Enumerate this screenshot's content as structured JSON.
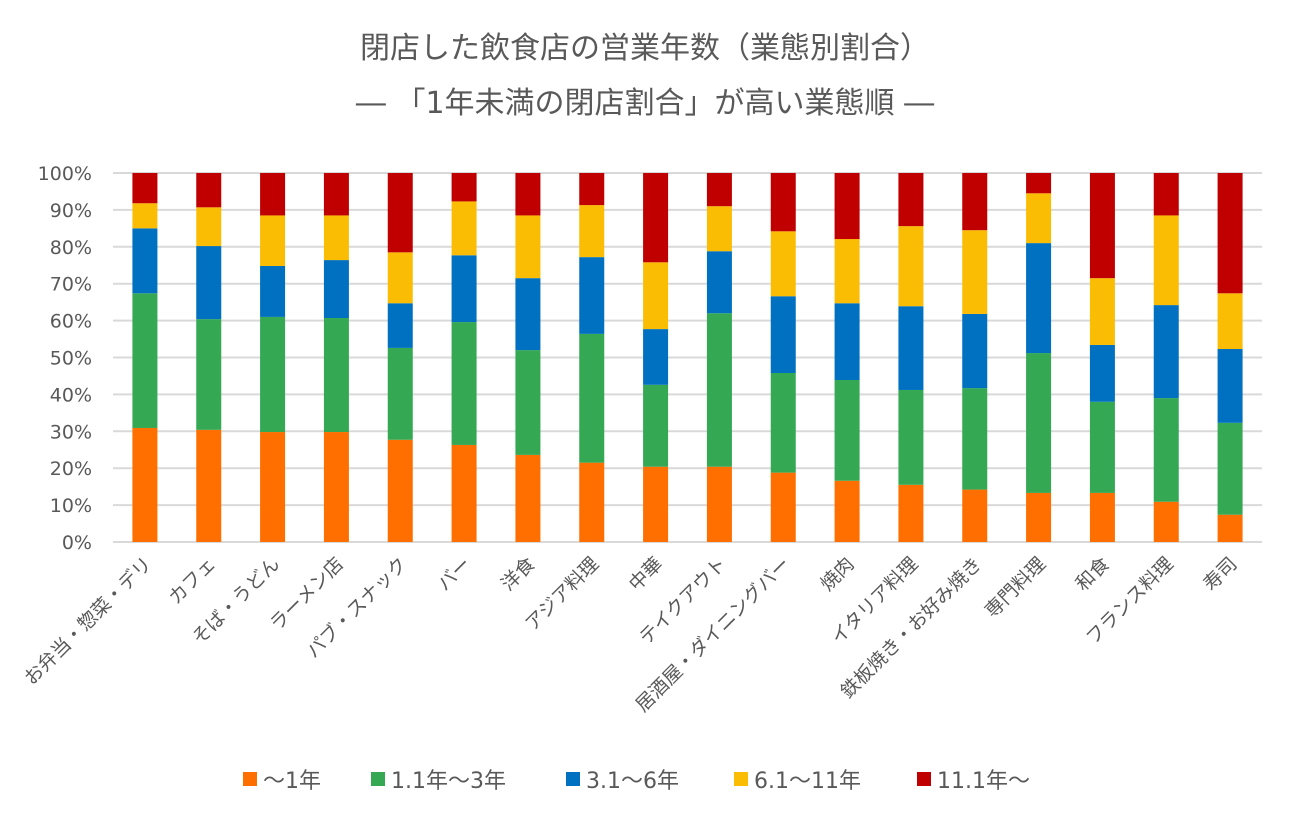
{
  "chart_data": {
    "type": "bar",
    "stacked": true,
    "title": "閉店した飲食店の営業年数（業態別割合）",
    "subtitle": "― 「1年未満の閉店割合」が高い業態順 ―",
    "xlabel": "",
    "ylabel": "",
    "ylim": [
      0,
      100
    ],
    "yticks": [
      "0%",
      "10%",
      "20%",
      "30%",
      "40%",
      "50%",
      "60%",
      "70%",
      "80%",
      "90%",
      "100%"
    ],
    "grid": true,
    "legend_position": "bottom",
    "categories": [
      "お弁当・惣菜・デリ",
      "カフェ",
      "そば・うどん",
      "ラーメン店",
      "パブ・スナック",
      "バー",
      "洋食",
      "アジア料理",
      "中華",
      "テイクアウト",
      "居酒屋・ダイニングバー",
      "焼肉",
      "イタリア料理",
      "鉄板焼き・お好み焼き",
      "専門料理",
      "和食",
      "フランス料理",
      "寿司"
    ],
    "series": [
      {
        "name": "～1年",
        "color": "#FF6F00",
        "values": [
          30.9,
          30.4,
          29.8,
          29.8,
          27.7,
          26.3,
          23.6,
          21.5,
          20.4,
          20.4,
          18.8,
          16.6,
          15.5,
          14.2,
          13.3,
          13.3,
          10.9,
          7.4
        ]
      },
      {
        "name": "1.1年～3年",
        "color": "#34A853",
        "values": [
          36.5,
          30.0,
          31.2,
          30.9,
          24.9,
          33.3,
          28.4,
          34.9,
          22.2,
          41.6,
          27.0,
          27.3,
          25.7,
          27.5,
          37.9,
          24.7,
          28.1,
          24.9
        ]
      },
      {
        "name": "3.1～6年",
        "color": "#0070C0",
        "values": [
          17.6,
          19.8,
          13.8,
          15.7,
          12.1,
          18.1,
          19.5,
          20.8,
          15.1,
          16.8,
          20.8,
          20.8,
          22.7,
          20.1,
          29.8,
          15.4,
          25.2,
          20.0
        ]
      },
      {
        "name": "6.1～11年",
        "color": "#FBBC04",
        "values": [
          6.8,
          10.5,
          13.7,
          12.1,
          13.8,
          14.6,
          17.0,
          14.1,
          18.1,
          12.2,
          17.6,
          17.4,
          21.7,
          22.7,
          13.5,
          18.1,
          24.3,
          15.1
        ]
      },
      {
        "name": "11.1年～",
        "color": "#C00000",
        "values": [
          8.2,
          9.3,
          11.5,
          11.5,
          21.5,
          7.7,
          11.5,
          8.7,
          24.2,
          9.0,
          15.8,
          17.9,
          14.4,
          15.5,
          5.5,
          28.5,
          11.5,
          32.6
        ]
      }
    ]
  }
}
